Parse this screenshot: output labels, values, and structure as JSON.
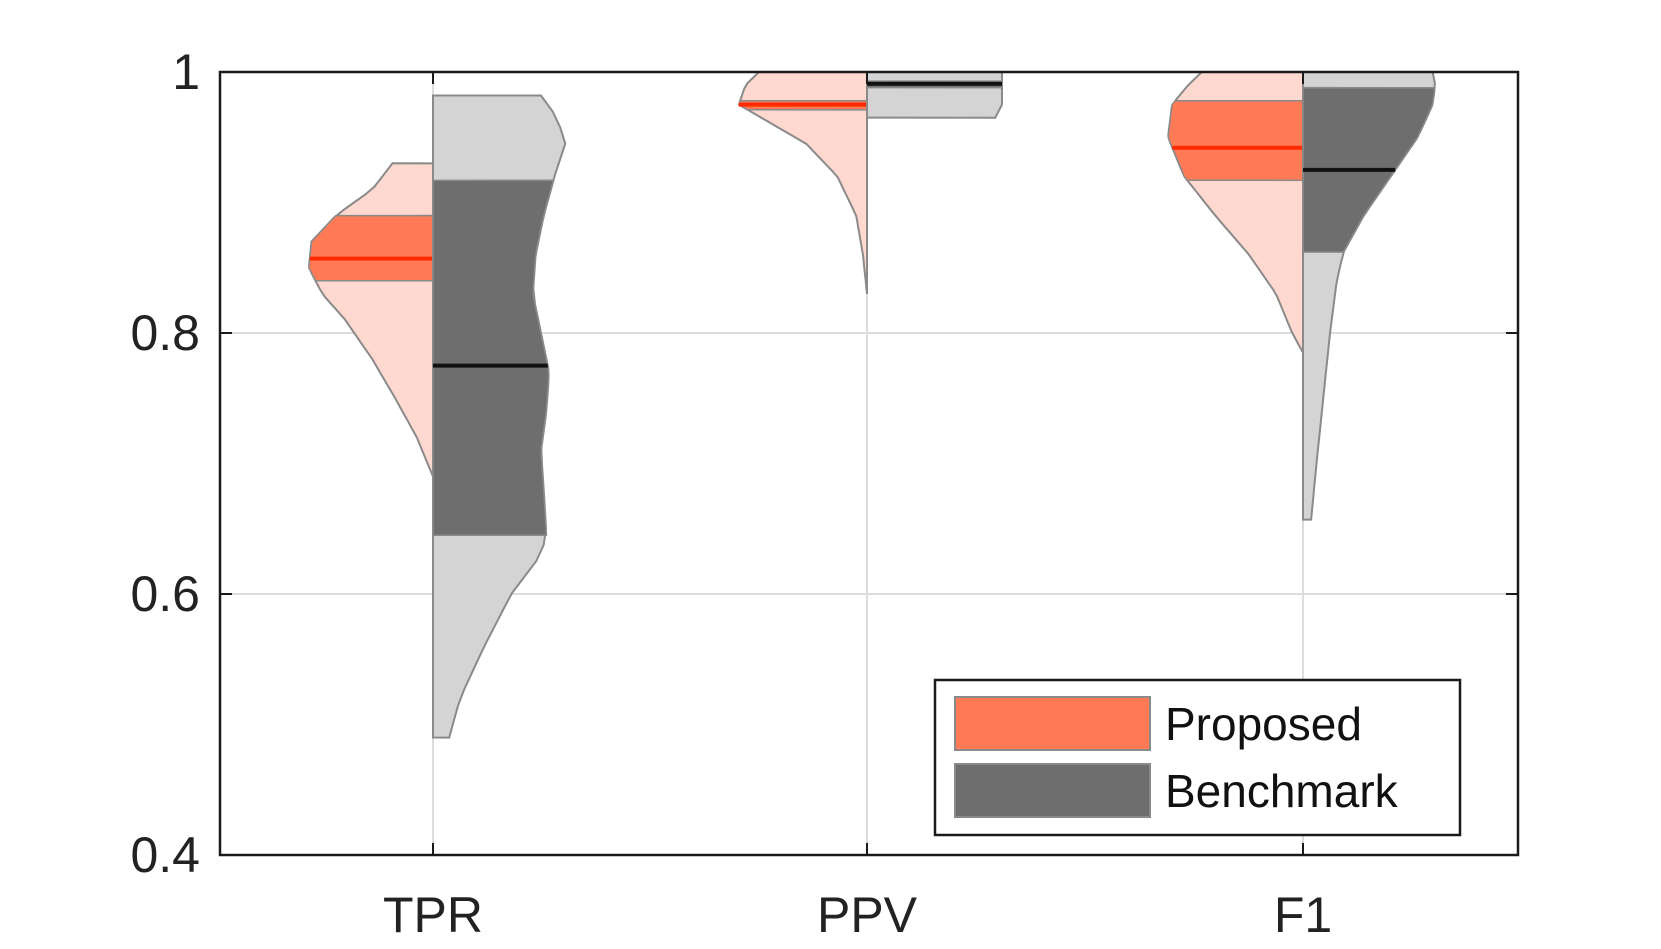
{
  "chart_data": {
    "type": "violin",
    "title": "",
    "xlabel": "",
    "ylabel": "",
    "categories": [
      "TPR",
      "PPV",
      "F1"
    ],
    "ylim": [
      0.4,
      1.0
    ],
    "yticks": [
      0.4,
      0.6,
      0.8,
      1.0
    ],
    "ytick_labels": [
      "0.4",
      "0.6",
      "0.8",
      "1"
    ],
    "grid": true,
    "legend_position": "bottom-right",
    "series": [
      {
        "name": "Proposed",
        "side": "left",
        "fill_color": "#ffd9cf",
        "box_color": "#ff7a55",
        "median_color": "#ff2a00",
        "violins": [
          {
            "category": "TPR",
            "min": 0.69,
            "max": 0.93,
            "q1": 0.84,
            "q3": 0.89,
            "median": 0.857,
            "profile": [
              [
                0.69,
                0.0
              ],
              [
                0.72,
                0.12
              ],
              [
                0.75,
                0.28
              ],
              [
                0.78,
                0.45
              ],
              [
                0.81,
                0.65
              ],
              [
                0.83,
                0.82
              ],
              [
                0.85,
                0.92
              ],
              [
                0.87,
                0.9
              ],
              [
                0.89,
                0.72
              ],
              [
                0.91,
                0.45
              ],
              [
                0.93,
                0.3
              ]
            ]
          },
          {
            "category": "PPV",
            "min": 0.83,
            "max": 1.0,
            "q1": 0.971,
            "q3": 0.978,
            "median": 0.975,
            "profile": [
              [
                0.83,
                0.0
              ],
              [
                0.86,
                0.03
              ],
              [
                0.89,
                0.08
              ],
              [
                0.92,
                0.22
              ],
              [
                0.945,
                0.45
              ],
              [
                0.96,
                0.7
              ],
              [
                0.975,
                0.95
              ],
              [
                0.99,
                0.9
              ],
              [
                1.0,
                0.8
              ]
            ]
          },
          {
            "category": "F1",
            "min": 0.785,
            "max": 1.0,
            "q1": 0.917,
            "q3": 0.978,
            "median": 0.942,
            "profile": [
              [
                0.785,
                0.0
              ],
              [
                0.8,
                0.08
              ],
              [
                0.83,
                0.2
              ],
              [
                0.86,
                0.4
              ],
              [
                0.89,
                0.65
              ],
              [
                0.92,
                0.88
              ],
              [
                0.95,
                1.0
              ],
              [
                0.975,
                0.97
              ],
              [
                0.99,
                0.85
              ],
              [
                1.0,
                0.75
              ]
            ]
          }
        ]
      },
      {
        "name": "Benchmark",
        "side": "right",
        "fill_color": "#d4d4d4",
        "box_color": "#6e6e6e",
        "median_color": "#111111",
        "violins": [
          {
            "category": "TPR",
            "min": 0.49,
            "max": 0.982,
            "q1": 0.645,
            "q3": 0.917,
            "median": 0.775,
            "profile": [
              [
                0.49,
                0.12
              ],
              [
                0.52,
                0.2
              ],
              [
                0.56,
                0.38
              ],
              [
                0.6,
                0.58
              ],
              [
                0.63,
                0.8
              ],
              [
                0.645,
                0.84
              ],
              [
                0.68,
                0.82
              ],
              [
                0.71,
                0.8
              ],
              [
                0.74,
                0.84
              ],
              [
                0.77,
                0.86
              ],
              [
                0.8,
                0.8
              ],
              [
                0.83,
                0.74
              ],
              [
                0.86,
                0.76
              ],
              [
                0.89,
                0.82
              ],
              [
                0.92,
                0.9
              ],
              [
                0.945,
                0.98
              ],
              [
                0.965,
                0.92
              ],
              [
                0.982,
                0.8
              ]
            ]
          },
          {
            "category": "PPV",
            "min": 0.965,
            "max": 1.0,
            "q1": 0.988,
            "q3": 0.993,
            "median": 0.991,
            "profile": [
              [
                0.965,
                0.95
              ],
              [
                0.975,
                1.0
              ],
              [
                0.985,
                1.0
              ],
              [
                0.99,
                1.0
              ],
              [
                1.0,
                1.0
              ]
            ]
          },
          {
            "category": "F1",
            "min": 0.657,
            "max": 1.0,
            "q1": 0.862,
            "q3": 0.988,
            "median": 0.925,
            "profile": [
              [
                0.657,
                0.06
              ],
              [
                0.7,
                0.1
              ],
              [
                0.75,
                0.15
              ],
              [
                0.8,
                0.2
              ],
              [
                0.84,
                0.25
              ],
              [
                0.862,
                0.3
              ],
              [
                0.89,
                0.45
              ],
              [
                0.92,
                0.65
              ],
              [
                0.95,
                0.85
              ],
              [
                0.975,
                0.96
              ],
              [
                0.99,
                0.98
              ],
              [
                1.0,
                0.96
              ]
            ]
          }
        ]
      }
    ]
  }
}
